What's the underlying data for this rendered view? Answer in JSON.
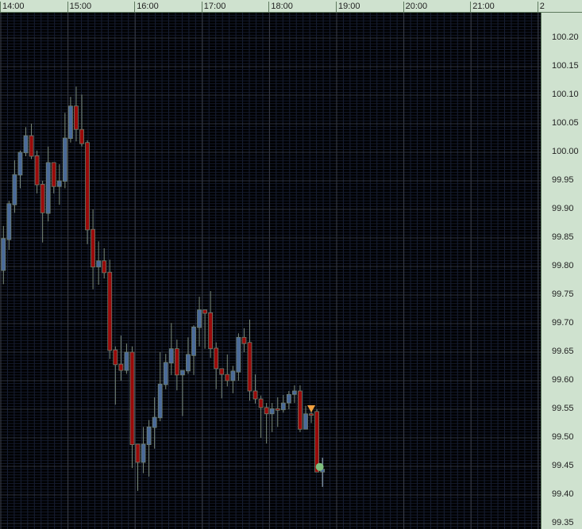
{
  "chart_data": {
    "type": "candlestick",
    "title": "",
    "time_ticks": [
      "14:00",
      "15:00",
      "16:00",
      "17:00",
      "18:00",
      "19:00",
      "20:00",
      "21:00",
      "2"
    ],
    "price_ticks": [
      "100.20",
      "100.15",
      "100.10",
      "100.05",
      "100.00",
      "99.95",
      "99.90",
      "99.85",
      "99.80",
      "99.75",
      "99.70",
      "99.65",
      "99.60",
      "99.55",
      "99.50",
      "99.45",
      "99.40",
      "99.35"
    ],
    "ylim": [
      99.35,
      100.21
    ],
    "grid": true,
    "colors": {
      "up": "#4a6a9a",
      "down": "#9b0a0a",
      "wick": "#7a8a7a",
      "background": "#000000",
      "axis": "#cfe2cf",
      "sell_marker": "#f0a040",
      "fill_marker": "#7fbf7f"
    },
    "candles_ohlc": [
      [
        99.793,
        99.871,
        99.769,
        99.849
      ],
      [
        99.847,
        99.915,
        99.829,
        99.91
      ],
      [
        99.908,
        99.986,
        99.894,
        99.961
      ],
      [
        99.96,
        100.003,
        99.937,
        100.0
      ],
      [
        99.999,
        100.044,
        99.993,
        100.029
      ],
      [
        100.029,
        100.05,
        99.988,
        99.993
      ],
      [
        99.994,
        100.003,
        99.928,
        99.943
      ],
      [
        99.944,
        99.95,
        99.842,
        99.894
      ],
      [
        99.893,
        100.01,
        99.879,
        99.982
      ],
      [
        99.982,
        99.982,
        99.928,
        99.94
      ],
      [
        99.94,
        99.979,
        99.908,
        99.95
      ],
      [
        99.949,
        100.069,
        99.937,
        100.025
      ],
      [
        100.024,
        100.097,
        100.017,
        100.081
      ],
      [
        100.081,
        100.115,
        100.019,
        100.04
      ],
      [
        100.04,
        100.101,
        100.01,
        100.015
      ],
      [
        100.017,
        100.021,
        99.839,
        99.864
      ],
      [
        99.865,
        99.9,
        99.76,
        99.799
      ],
      [
        99.799,
        99.844,
        99.768,
        99.81
      ],
      [
        99.81,
        99.832,
        99.779,
        99.789
      ],
      [
        99.79,
        99.812,
        99.638,
        99.653
      ],
      [
        99.654,
        99.66,
        99.558,
        99.628
      ],
      [
        99.629,
        99.679,
        99.6,
        99.618
      ],
      [
        99.618,
        99.665,
        99.612,
        99.65
      ],
      [
        99.65,
        99.66,
        99.447,
        99.488
      ],
      [
        99.489,
        99.489,
        99.407,
        99.457
      ],
      [
        99.457,
        99.519,
        99.438,
        99.489
      ],
      [
        99.488,
        99.531,
        99.432,
        99.519
      ],
      [
        99.518,
        99.571,
        99.481,
        99.536
      ],
      [
        99.535,
        99.65,
        99.529,
        99.594
      ],
      [
        99.593,
        99.647,
        99.585,
        99.632
      ],
      [
        99.631,
        99.701,
        99.61,
        99.656
      ],
      [
        99.656,
        99.672,
        99.583,
        99.61
      ],
      [
        99.61,
        99.618,
        99.538,
        99.618
      ],
      [
        99.617,
        99.676,
        99.612,
        99.646
      ],
      [
        99.644,
        99.697,
        99.61,
        99.694
      ],
      [
        99.693,
        99.747,
        99.66,
        99.724
      ],
      [
        99.724,
        99.724,
        99.656,
        99.718
      ],
      [
        99.719,
        99.757,
        99.64,
        99.656
      ],
      [
        99.657,
        99.667,
        99.585,
        99.621
      ],
      [
        99.621,
        99.621,
        99.569,
        99.611
      ],
      [
        99.611,
        99.646,
        99.59,
        99.6
      ],
      [
        99.6,
        99.626,
        99.578,
        99.617
      ],
      [
        99.615,
        99.683,
        99.6,
        99.676
      ],
      [
        99.676,
        99.692,
        99.65,
        99.665
      ],
      [
        99.667,
        99.707,
        99.565,
        99.582
      ],
      [
        99.582,
        99.611,
        99.56,
        99.568
      ],
      [
        99.568,
        99.574,
        99.5,
        99.553
      ],
      [
        99.553,
        99.561,
        99.49,
        99.542
      ],
      [
        99.542,
        99.561,
        99.51,
        99.551
      ],
      [
        99.551,
        99.571,
        99.519,
        99.549
      ],
      [
        99.549,
        99.575,
        99.544,
        99.561
      ],
      [
        99.561,
        99.582,
        99.55,
        99.576
      ],
      [
        99.576,
        99.592,
        99.561,
        99.582
      ],
      [
        99.582,
        99.592,
        99.51,
        99.515
      ],
      [
        99.515,
        99.556,
        99.515,
        99.542
      ],
      [
        99.542,
        99.556,
        99.526,
        99.54
      ],
      [
        99.546,
        99.55,
        99.44,
        99.44
      ],
      [
        99.44,
        99.465,
        99.414,
        99.445
      ]
    ],
    "markers": [
      {
        "type": "sell-arrow",
        "candle": 55,
        "price": 99.55
      },
      {
        "type": "circle",
        "candle": 56.5,
        "price": 99.449
      }
    ]
  }
}
